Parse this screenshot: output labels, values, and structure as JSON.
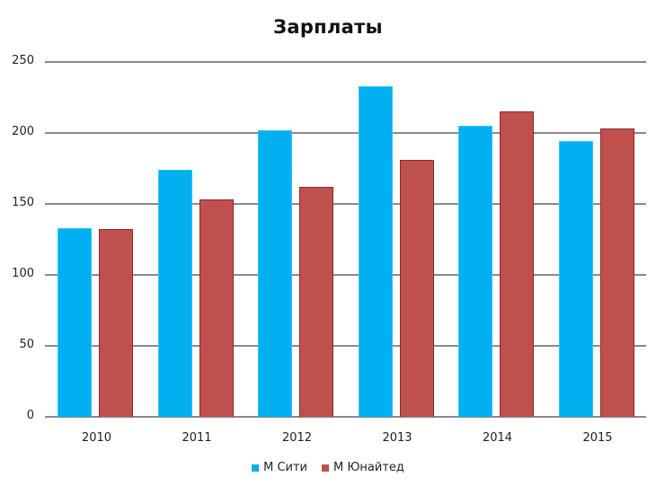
{
  "chart_data": {
    "type": "bar",
    "title": "Зарплаты",
    "xlabel": "",
    "ylabel": "",
    "categories": [
      "2010",
      "2011",
      "2012",
      "2013",
      "2014",
      "2015"
    ],
    "series": [
      {
        "name": "М Сити",
        "color": "#00B0F0",
        "values": [
          133,
          174,
          202,
          233,
          205,
          194
        ]
      },
      {
        "name": "М Юнайтед",
        "color": "#C0504D",
        "values": [
          132,
          153,
          162,
          181,
          215,
          203
        ]
      }
    ],
    "ylim": [
      0,
      250
    ],
    "yticks": [
      0,
      50,
      100,
      150,
      200,
      250
    ],
    "grid": true,
    "legend_position": "bottom"
  }
}
